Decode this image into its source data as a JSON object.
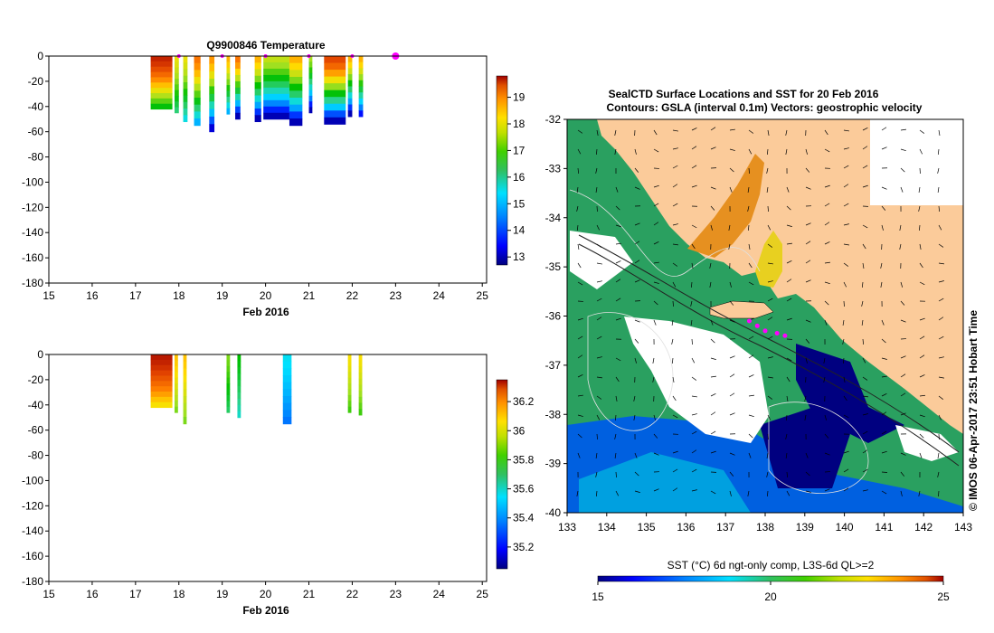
{
  "chart_data": [
    {
      "type": "heatmap",
      "name": "temperature-profile",
      "title": "Q9900846  Temperature",
      "xlabel": "Feb 2016",
      "ylabel": "",
      "xlim": [
        15,
        25.1
      ],
      "ylim": [
        -180,
        0
      ],
      "xticks": [
        "15",
        "16",
        "17",
        "18",
        "19",
        "20",
        "21",
        "22",
        "23",
        "24",
        "25"
      ],
      "yticks": [
        "0",
        "-20",
        "-40",
        "-60",
        "-80",
        "-100",
        "-120",
        "-140",
        "-160",
        "-180"
      ],
      "colorbar": {
        "min": 12.7,
        "max": 19.8,
        "ticks": [
          "19",
          "18",
          "17",
          "16",
          "15",
          "14",
          "13"
        ]
      },
      "surface_markers": [
        18.0,
        19.0,
        20.0,
        21.0,
        22.0,
        23.0
      ],
      "profiles": [
        {
          "day": 17.35,
          "width": 0.5,
          "depth": 42,
          "surface": 19.4,
          "bottom": 16.2
        },
        {
          "day": 17.9,
          "width": 0.1,
          "depth": 45,
          "surface": 17.5,
          "bottom": 15.6
        },
        {
          "day": 18.1,
          "width": 0.1,
          "depth": 52,
          "surface": 17.5,
          "bottom": 15.0
        },
        {
          "day": 18.35,
          "width": 0.15,
          "depth": 55,
          "surface": 18.5,
          "bottom": 14.5
        },
        {
          "day": 18.7,
          "width": 0.12,
          "depth": 60,
          "surface": 18.2,
          "bottom": 13.2
        },
        {
          "day": 19.1,
          "width": 0.08,
          "depth": 46,
          "surface": 18.0,
          "bottom": 14.5
        },
        {
          "day": 19.3,
          "width": 0.12,
          "depth": 50,
          "surface": 18.5,
          "bottom": 13.0
        },
        {
          "day": 19.75,
          "width": 0.15,
          "depth": 52,
          "surface": 18.0,
          "bottom": 13.0
        },
        {
          "day": 19.95,
          "width": 0.6,
          "depth": 50,
          "surface": 17.2,
          "bottom": 13.0
        },
        {
          "day": 20.55,
          "width": 0.3,
          "depth": 55,
          "surface": 18.0,
          "bottom": 13.0
        },
        {
          "day": 21.0,
          "width": 0.08,
          "depth": 45,
          "surface": 17.0,
          "bottom": 13.0
        },
        {
          "day": 21.35,
          "width": 0.5,
          "depth": 54,
          "surface": 19.0,
          "bottom": 13.0
        },
        {
          "day": 21.9,
          "width": 0.1,
          "depth": 48,
          "surface": 18.0,
          "bottom": 13.0
        },
        {
          "day": 22.15,
          "width": 0.1,
          "depth": 48,
          "surface": 18.0,
          "bottom": 13.5
        }
      ]
    },
    {
      "type": "heatmap",
      "name": "salinity-profile",
      "title": "",
      "xlabel": "Feb 2016",
      "ylabel": "",
      "xlim": [
        15,
        25.1
      ],
      "ylim": [
        -180,
        0
      ],
      "xticks": [
        "15",
        "16",
        "17",
        "18",
        "19",
        "20",
        "21",
        "22",
        "23",
        "24",
        "25"
      ],
      "yticks": [
        "0",
        "-20",
        "-40",
        "-60",
        "-80",
        "-100",
        "-120",
        "-140",
        "-160",
        "-180"
      ],
      "colorbar": {
        "min": 35.05,
        "max": 36.35,
        "ticks": [
          "36.2",
          "36",
          "35.8",
          "35.6",
          "35.4",
          "35.2"
        ]
      },
      "profiles": [
        {
          "day": 17.35,
          "width": 0.5,
          "depth": 42,
          "surface": 36.3,
          "bottom": 35.95
        },
        {
          "day": 17.9,
          "width": 0.08,
          "depth": 46,
          "surface": 36.0,
          "bottom": 35.8
        },
        {
          "day": 18.1,
          "width": 0.08,
          "depth": 55,
          "surface": 36.0,
          "bottom": 35.8
        },
        {
          "day": 19.1,
          "width": 0.08,
          "depth": 46,
          "surface": 35.8,
          "bottom": 35.6
        },
        {
          "day": 19.35,
          "width": 0.08,
          "depth": 50,
          "surface": 35.7,
          "bottom": 35.5
        },
        {
          "day": 20.4,
          "width": 0.2,
          "depth": 55,
          "surface": 35.45,
          "bottom": 35.3
        },
        {
          "day": 21.9,
          "width": 0.08,
          "depth": 46,
          "surface": 35.95,
          "bottom": 35.75
        },
        {
          "day": 22.15,
          "width": 0.08,
          "depth": 48,
          "surface": 35.95,
          "bottom": 35.75
        }
      ]
    },
    {
      "type": "heatmap",
      "name": "sst-map",
      "title": "SealCTD Surface Locations and SST for 20 Feb 2016",
      "subtitle": "Contours: GSLA (interval 0.1m) Vectors: geostrophic velocity",
      "xlim": [
        133,
        143
      ],
      "ylim": [
        -40,
        -32
      ],
      "xticks": [
        "133",
        "134",
        "135",
        "136",
        "137",
        "138",
        "139",
        "140",
        "141",
        "142",
        "143"
      ],
      "yticks": [
        "-32",
        "-33",
        "-34",
        "-35",
        "-36",
        "-37",
        "-38",
        "-39",
        "-40"
      ],
      "colorbar": {
        "label": "SST (°C) 6d ngt-only comp, L3S-6d QL>=2",
        "min": 15,
        "max": 25,
        "ticks": [
          "15",
          "20",
          "25"
        ]
      },
      "credit": "© IMOS 06-Apr-2017 23:51 Hobart Time",
      "seal_locations": [
        {
          "lon": 137.8,
          "lat": -36.2
        },
        {
          "lon": 138.0,
          "lat": -36.3
        },
        {
          "lon": 138.3,
          "lat": -36.35
        },
        {
          "lon": 138.5,
          "lat": -36.4
        },
        {
          "lon": 137.6,
          "lat": -36.1
        }
      ]
    }
  ],
  "colors": {
    "scale": [
      "#00007f",
      "#0000ff",
      "#0080ff",
      "#00e0ff",
      "#30d080",
      "#00c000",
      "#a0e020",
      "#ffe000",
      "#ff8000",
      "#e04000",
      "#a00000"
    ],
    "land": "#fbcb9a",
    "magenta": "#ff00ff"
  }
}
